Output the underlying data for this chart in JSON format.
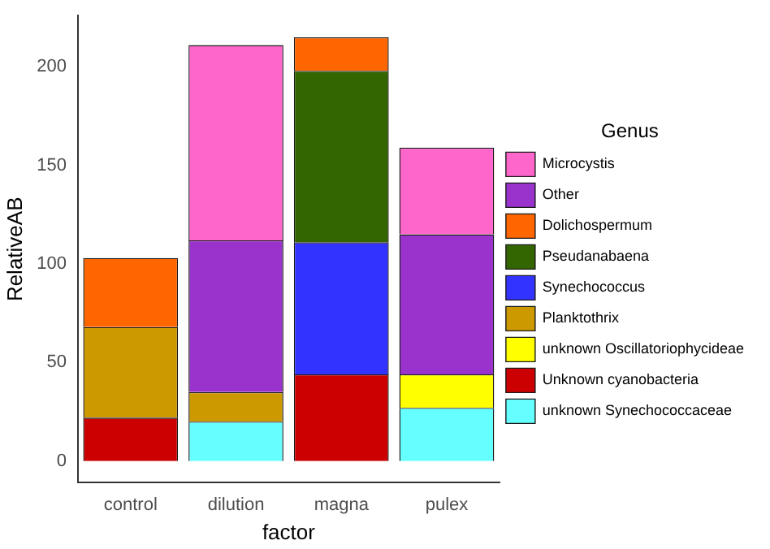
{
  "chart_data": {
    "type": "bar",
    "stacked": true,
    "xlabel": "factor",
    "ylabel": "RelativeAB",
    "legend_title": "Genus",
    "legend": "right",
    "grid": false,
    "categories": [
      "control",
      "dilution",
      "magna",
      "pulex"
    ],
    "ylim": [
      -11,
      226
    ],
    "yticks": [
      0,
      50,
      100,
      150,
      200
    ],
    "series": [
      {
        "name": "unknown Synechococcaceae",
        "color": "#66ffff",
        "values": [
          null,
          20,
          null,
          27
        ]
      },
      {
        "name": "Unknown cyanobacteria",
        "color": "#cc0000",
        "values": [
          22,
          null,
          44,
          null
        ]
      },
      {
        "name": "unknown Oscillatoriophycideae",
        "color": "#ffff00",
        "values": [
          null,
          null,
          null,
          17
        ]
      },
      {
        "name": "Planktothrix",
        "color": "#cc9900",
        "values": [
          46,
          15,
          null,
          null
        ]
      },
      {
        "name": "Synechococcus",
        "color": "#3333ff",
        "values": [
          null,
          null,
          67,
          null
        ]
      },
      {
        "name": "Pseudanabaena",
        "color": "#336600",
        "values": [
          null,
          null,
          87,
          null
        ]
      },
      {
        "name": "Dolichospermum",
        "color": "#ff6600",
        "values": [
          35,
          null,
          17,
          null
        ]
      },
      {
        "name": "Other",
        "color": "#9933cc",
        "values": [
          null,
          77,
          null,
          71
        ]
      },
      {
        "name": "Microcystis",
        "color": "#ff66cc",
        "values": [
          null,
          99,
          null,
          44
        ]
      }
    ]
  }
}
